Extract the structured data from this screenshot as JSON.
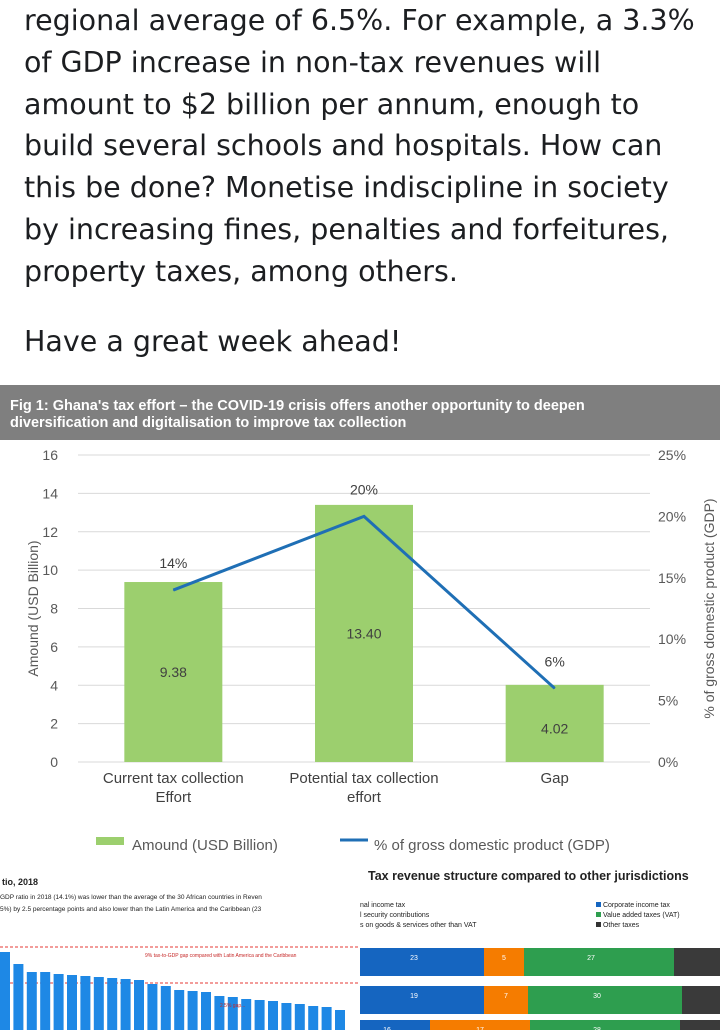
{
  "post": {
    "lines": [
      "regional average of 6.5%. For example, a 3.3%",
      "of GDP increase in non-tax revenues will",
      "amount to $2 billion per annum, enough to",
      "build several schools and hospitals. How can",
      "this be done? Monetise indiscipline in society",
      "by increasing fines, penalties and forfeitures,",
      "property taxes, among others."
    ],
    "closing": "Have a great week ahead!"
  },
  "figure": {
    "title_line1": "Fig 1: Ghana's tax effort – the COVID-19 crisis offers another opportunity to deepen",
    "title_line2": "diversification  and digitalisation to improve tax collection"
  },
  "chart_data": {
    "type": "bar",
    "categories": [
      "Current tax collection Effort",
      "Potential tax collection effort",
      "Gap"
    ],
    "category_lines": [
      [
        "Current tax collection",
        "Effort"
      ],
      [
        "Potential tax collection",
        "effort"
      ],
      [
        "Gap"
      ]
    ],
    "series": [
      {
        "name": "Amound (USD Billion)",
        "type": "bar",
        "axis": "left",
        "values": [
          9.38,
          13.4,
          4.02
        ],
        "labels": [
          "9.38",
          "13.40",
          "4.02"
        ],
        "color": "#9ccf6e"
      },
      {
        "name": "% of gross domestic product (GDP)",
        "type": "line",
        "axis": "right",
        "values": [
          14,
          20,
          6
        ],
        "labels": [
          "14%",
          "20%",
          "6%"
        ],
        "color": "#1f6fb5"
      }
    ],
    "ylabel": "Amound (USD Billion)",
    "ylabel_right": "% of gross domestic product (GDP)",
    "ylim": [
      0,
      16
    ],
    "ylim_right": [
      0,
      25
    ],
    "yticks": [
      "0",
      "2",
      "4",
      "6",
      "8",
      "10",
      "12",
      "14",
      "16"
    ],
    "yticks_right": [
      "0%",
      "5%",
      "10%",
      "15%",
      "20%",
      "25%"
    ],
    "grid": true,
    "legend_position": "bottom",
    "legend": [
      "Amound (USD Billion)",
      "% of gross domestic product (GDP)"
    ]
  },
  "lower_left": {
    "title": "tio, 2018",
    "line1": "GDP ratio in 2018 (14.1%) was lower than the average of the 30 African countries in Reven",
    "line2": "5%) by 2.5 percentage points and also lower than the Latin America and the Caribbean (23",
    "note1": "9% tax-to-GDP gap compared with Latin America and the Caribbean",
    "note2": "2.5% gap..."
  },
  "lower_right": {
    "title": "Tax revenue structure compared to other jurisdictions",
    "legend_left": [
      "nal income tax",
      "l security contributions",
      "s on goods & services other than VAT"
    ],
    "legend_right": [
      "Corporate income tax",
      "Value added taxes (VAT)",
      "Other taxes"
    ],
    "rows": [
      [
        "23",
        "5",
        "27"
      ],
      [
        "19",
        "7",
        "30"
      ],
      [
        "16",
        "17",
        "28"
      ]
    ],
    "colors": {
      "blue": "#1565c0",
      "orange": "#f57c00",
      "green": "#2e9e4f",
      "dark": "#3a3a3a"
    }
  }
}
